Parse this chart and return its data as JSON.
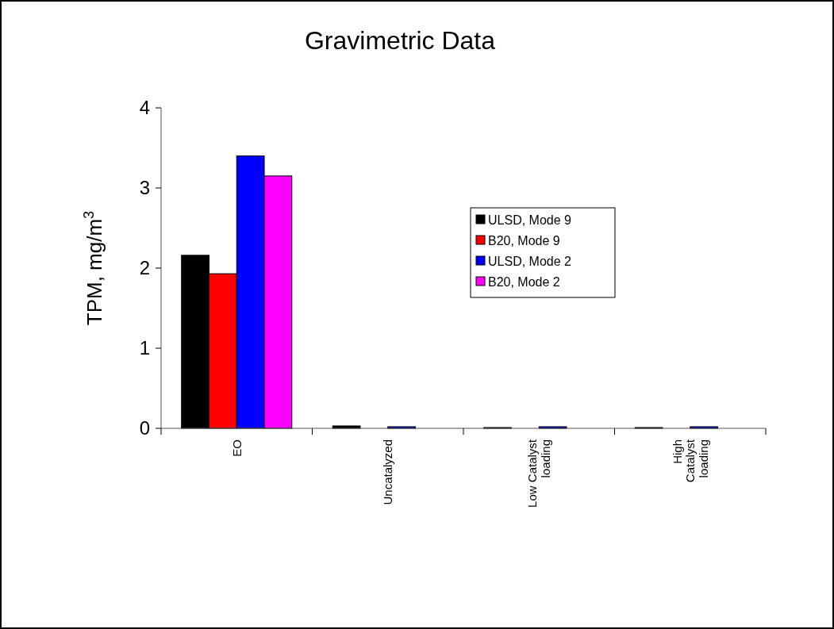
{
  "chart_data": {
    "type": "bar",
    "title": "Gravimetric Data",
    "ylabel": "TPM, mg/m$^{3}$",
    "categories": [
      "EO",
      "Uncatalyzed",
      "Low Catalyst loading",
      "High Catalyst loading"
    ],
    "series": [
      {
        "name": "ULSD, Mode 9",
        "color": "#000000",
        "values": [
          2.16,
          0.03,
          0.01,
          0.01
        ]
      },
      {
        "name": "B20, Mode 9",
        "color": "#ff0000",
        "values": [
          1.93,
          null,
          null,
          null
        ]
      },
      {
        "name": "ULSD, Mode 2",
        "color": "#0000ff",
        "values": [
          3.4,
          0.02,
          0.02,
          0.02
        ]
      },
      {
        "name": "B20, Mode 2",
        "color": "#ff00ff",
        "values": [
          3.15,
          null,
          null,
          null
        ]
      }
    ],
    "ylim": [
      0,
      4
    ],
    "yticks": [
      0,
      1,
      2,
      3,
      4
    ],
    "legend": "center"
  }
}
